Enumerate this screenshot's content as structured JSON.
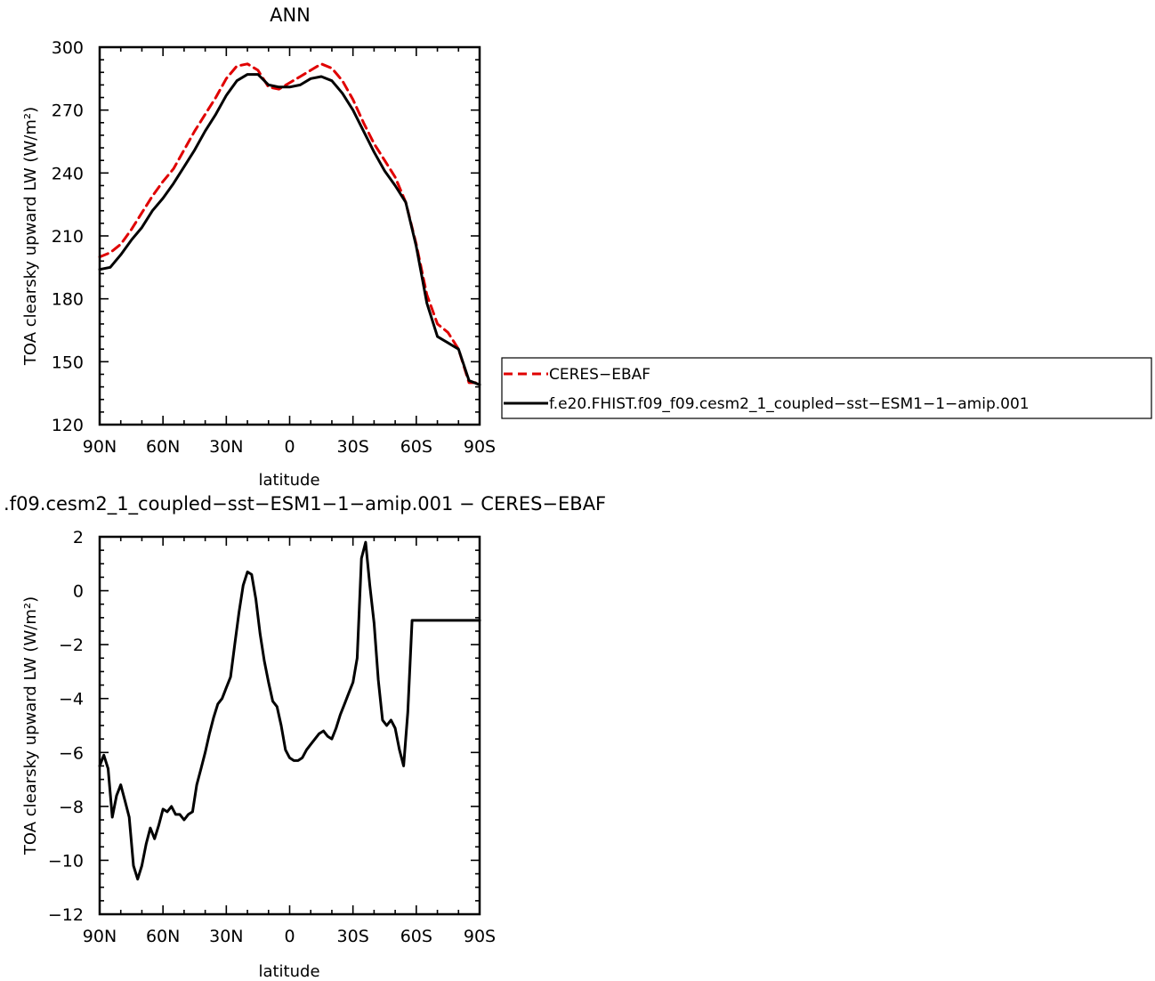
{
  "chart_data": [
    {
      "type": "line",
      "title": "ANN",
      "xlabel": "latitude",
      "ylabel": "TOA clearsky upward LW (W/m²)",
      "xlim": [
        -90,
        90
      ],
      "ylim": [
        120,
        300
      ],
      "xticks": [
        {
          "value": -90,
          "label": "90N"
        },
        {
          "value": -60,
          "label": "60N"
        },
        {
          "value": -30,
          "label": "30N"
        },
        {
          "value": 0,
          "label": "0"
        },
        {
          "value": 30,
          "label": "30S"
        },
        {
          "value": 60,
          "label": "60S"
        },
        {
          "value": 90,
          "label": "90S"
        }
      ],
      "yticks": [
        120,
        150,
        180,
        210,
        240,
        270,
        300
      ],
      "legend": {
        "placement": "right",
        "entries": [
          "CERES−EBAF",
          "f.e20.FHIST.f09_f09.cesm2_1_coupled−sst−ESM1−1−amip.001"
        ]
      },
      "series": [
        {
          "name": "CERES−EBAF",
          "color": "#e00000",
          "dash": true,
          "x": [
            -90,
            -85,
            -80,
            -75,
            -70,
            -65,
            -60,
            -55,
            -50,
            -45,
            -40,
            -35,
            -30,
            -25,
            -20,
            -15,
            -10,
            -5,
            0,
            5,
            10,
            15,
            20,
            25,
            30,
            35,
            40,
            45,
            50,
            55,
            60,
            65,
            70,
            75,
            80,
            85,
            90
          ],
          "y": [
            200,
            202,
            206,
            213,
            221,
            229,
            236,
            242,
            251,
            260,
            268,
            276,
            285,
            291,
            292,
            289,
            281,
            280,
            283,
            286,
            289,
            292,
            290,
            284,
            275,
            264,
            254,
            246,
            238,
            226,
            206,
            182,
            168,
            164,
            156,
            140,
            140
          ]
        },
        {
          "name": "f.e20.FHIST.f09_f09.cesm2_1_coupled−sst−ESM1−1−amip.001",
          "color": "#000000",
          "dash": false,
          "x": [
            -90,
            -85,
            -80,
            -75,
            -70,
            -65,
            -60,
            -55,
            -50,
            -45,
            -40,
            -35,
            -30,
            -25,
            -20,
            -15,
            -10,
            -5,
            0,
            5,
            10,
            15,
            20,
            25,
            30,
            35,
            40,
            45,
            50,
            55,
            60,
            65,
            70,
            75,
            80,
            85,
            90
          ],
          "y": [
            194,
            195,
            201,
            208,
            214,
            222,
            228,
            235,
            243,
            251,
            260,
            268,
            277,
            284,
            287,
            287,
            282,
            281,
            281,
            282,
            285,
            286,
            284,
            278,
            270,
            260,
            250,
            241,
            234,
            226,
            205,
            178,
            162,
            159,
            156,
            141,
            139
          ]
        }
      ]
    },
    {
      "type": "line",
      "title": ".f09.cesm2_1_coupled−sst−ESM1−1−amip.001 − CERES−EBAF",
      "xlabel": "latitude",
      "ylabel": "TOA clearsky upward LW (W/m²)",
      "xlim": [
        -90,
        90
      ],
      "ylim": [
        -12,
        2
      ],
      "xticks": [
        {
          "value": -90,
          "label": "90N"
        },
        {
          "value": -60,
          "label": "60N"
        },
        {
          "value": -30,
          "label": "30N"
        },
        {
          "value": 0,
          "label": "0"
        },
        {
          "value": 30,
          "label": "30S"
        },
        {
          "value": 60,
          "label": "60S"
        },
        {
          "value": 90,
          "label": "90S"
        }
      ],
      "yticks": [
        -12,
        -10,
        -8,
        -6,
        -4,
        -2,
        0,
        2
      ],
      "series": [
        {
          "name": "",
          "color": "#000000",
          "dash": false,
          "x": [
            -90,
            -88,
            -86,
            -84,
            -82,
            -80,
            -78,
            -76,
            -74,
            -72,
            -70,
            -68,
            -66,
            -64,
            -62,
            -60,
            -58,
            -56,
            -54,
            -52,
            -50,
            -48,
            -46,
            -44,
            -42,
            -40,
            -38,
            -36,
            -34,
            -32,
            -30,
            -28,
            -26,
            -24,
            -22,
            -20,
            -18,
            -16,
            -14,
            -12,
            -10,
            -8,
            -6,
            -4,
            -2,
            0,
            2,
            4,
            6,
            8,
            10,
            12,
            14,
            16,
            18,
            20,
            22,
            24,
            26,
            28,
            30,
            32,
            34,
            36,
            38,
            40,
            42,
            44,
            46,
            48,
            50,
            52,
            54,
            56,
            58,
            60,
            62,
            64,
            66,
            68,
            70,
            72,
            74,
            76,
            78,
            80,
            82,
            84,
            86,
            88,
            90
          ],
          "y": [
            -6.5,
            -6.1,
            -6.6,
            -8.4,
            -7.6,
            -7.2,
            -7.8,
            -8.4,
            -10.2,
            -10.7,
            -10.2,
            -9.4,
            -8.8,
            -9.2,
            -8.7,
            -8.1,
            -8.2,
            -8.0,
            -8.3,
            -8.3,
            -8.5,
            -8.3,
            -8.2,
            -7.2,
            -6.6,
            -6.0,
            -5.3,
            -4.7,
            -4.2,
            -4.0,
            -3.6,
            -3.2,
            -2.0,
            -0.8,
            0.2,
            0.7,
            0.6,
            -0.3,
            -1.6,
            -2.6,
            -3.4,
            -4.1,
            -4.3,
            -5.0,
            -5.9,
            -6.2,
            -6.3,
            -6.3,
            -6.2,
            -5.9,
            -5.7,
            -5.5,
            -5.3,
            -5.2,
            -5.4,
            -5.5,
            -5.1,
            -4.6,
            -4.2,
            -3.8,
            -3.4,
            -2.5,
            1.2,
            1.8,
            0.2,
            -1.2,
            -3.3,
            -4.8,
            -5.0,
            -4.8,
            -5.1,
            -5.9,
            -6.5,
            -4.5,
            -1.1,
            -1.1,
            -1.1,
            -1.1,
            -1.1,
            -1.1,
            -1.1,
            -1.1,
            -1.1,
            -1.1,
            -1.1,
            -1.1,
            -1.1,
            -1.1,
            -1.1,
            -1.1,
            -1.1
          ]
        }
      ]
    }
  ]
}
